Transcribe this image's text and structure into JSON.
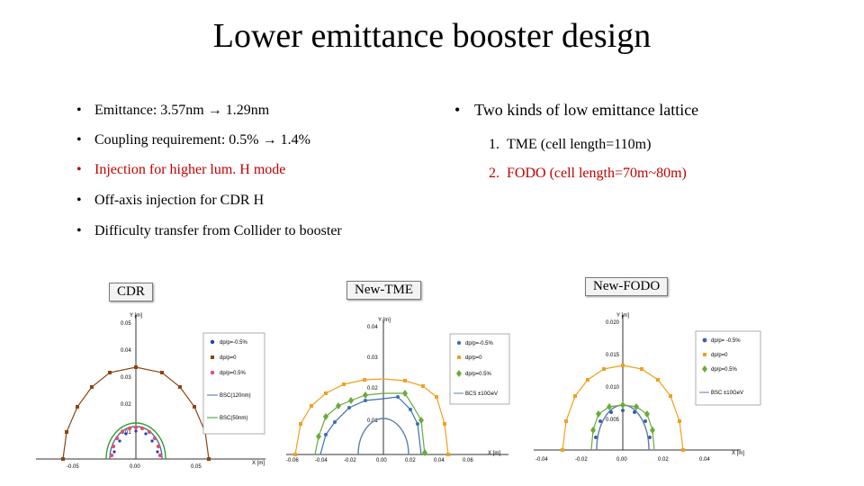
{
  "slide": {
    "title": "Lower emittance booster design",
    "left_bullets": [
      {
        "text": "Emittance: 3.57nm → 1.29nm",
        "color": "#000000"
      },
      {
        "text": "Coupling requirement: 0.5% → 1.4%",
        "color": "#000000"
      },
      {
        "text": "Injection for higher lum. H mode",
        "color": "#c00000"
      },
      {
        "text": "Off-axis injection for CDR H",
        "color": "#000000"
      },
      {
        "text": "Difficulty transfer from Collider to booster",
        "color": "#000000"
      }
    ],
    "right_heading": "Two kinds of low emittance lattice",
    "right_items": [
      {
        "num": "1.",
        "text": "TME  (cell length=110m)",
        "color": "#000000"
      },
      {
        "num": "2.",
        "text": "FODO (cell length=70m~80m)",
        "color": "#c00000"
      }
    ]
  },
  "plots": [
    {
      "label": "CDR",
      "axis_x_label": "X [m]",
      "axis_y_label": "Y [m]",
      "x_ticks": [
        "-0.05",
        "0.00",
        "0.05"
      ],
      "y_ticks": [
        "0.01",
        "0.02",
        "0.03",
        "0.04",
        "0.05"
      ],
      "legend": [
        "dp/p=-0.5%",
        "dp/p=0",
        "dp/p=0.5%",
        "BSC(120nm)",
        "BSC(50nm)"
      ],
      "colors": [
        "#1f3fbf",
        "#8b4513",
        "#e05070",
        "#4a6fa0",
        "#2ca02c"
      ]
    },
    {
      "label": "New-TME",
      "axis_x_label": "X [m]",
      "axis_y_label": "Y [m]",
      "x_ticks": [
        "-0.06",
        "-0.04",
        "-0.02",
        "0.00",
        "0.02",
        "0.04",
        "0.06"
      ],
      "y_ticks": [
        "0.01",
        "0.02",
        "0.03",
        "0.04"
      ],
      "legend": [
        "dp/p=-0.5%",
        "dp/p=0",
        "dp/p=0.5%",
        "BCS ±10GeV"
      ],
      "colors": [
        "#3b6fb6",
        "#f0a020",
        "#6aaa3a",
        "#5a80a8"
      ]
    },
    {
      "label": "New-FODO",
      "axis_x_label": "X [m]",
      "axis_y_label": "Y [m]",
      "x_ticks": [
        "-0.04",
        "-0.02",
        "0.00",
        "0.02",
        "0.04"
      ],
      "y_ticks": [
        "0.005",
        "0.010",
        "0.015",
        "0.020"
      ],
      "legend": [
        "dp/p= -0.5%",
        "dp/p=0",
        "dp/p=0.5%",
        "BSC ±10GeV"
      ],
      "colors": [
        "#3b5fb0",
        "#f0a020",
        "#6aaa3a",
        "#5a80a8"
      ]
    }
  ]
}
